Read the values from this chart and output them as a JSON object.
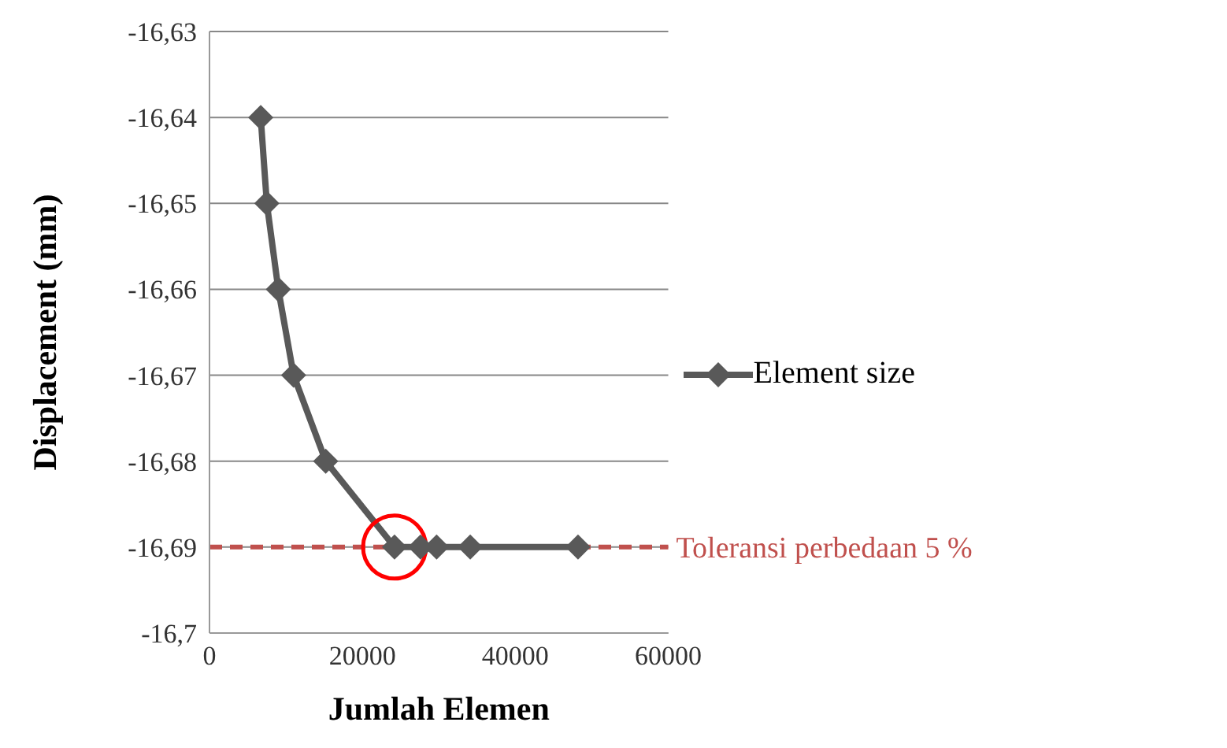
{
  "chart_data": {
    "type": "line",
    "xlabel": "Jumlah Elemen",
    "ylabel": "Displacement (mm)",
    "x": [
      6700,
      7500,
      9000,
      11000,
      15200,
      24200,
      27600,
      29700,
      34100,
      48200
    ],
    "series": [
      {
        "name": "Element size",
        "color": "#595959",
        "values": [
          -16.64,
          -16.65,
          -16.66,
          -16.67,
          -16.68,
          -16.69,
          -16.69,
          -16.69,
          -16.69,
          -16.69
        ]
      }
    ],
    "xlim": [
      0,
      60000
    ],
    "xticks": [
      0,
      20000,
      40000,
      60000
    ],
    "ylim": [
      -16.7,
      -16.63
    ],
    "yticks": [
      {
        "value": -16.7,
        "label": "-16,7"
      },
      {
        "value": -16.69,
        "label": "-16,69"
      },
      {
        "value": -16.68,
        "label": "-16,68"
      },
      {
        "value": -16.67,
        "label": "-16,67"
      },
      {
        "value": -16.66,
        "label": "-16,66"
      },
      {
        "value": -16.65,
        "label": "-16,65"
      },
      {
        "value": -16.64,
        "label": "-16,64"
      },
      {
        "value": -16.63,
        "label": "-16,63"
      }
    ],
    "ref_lines": [
      {
        "axis": "y",
        "value": -16.69,
        "label": "Toleransi perbedaan 5 %",
        "color": "#c0504d",
        "line_style": "dashed"
      }
    ],
    "grid": "y",
    "legend": "right",
    "marker": "diamond",
    "line_style": "solid"
  }
}
